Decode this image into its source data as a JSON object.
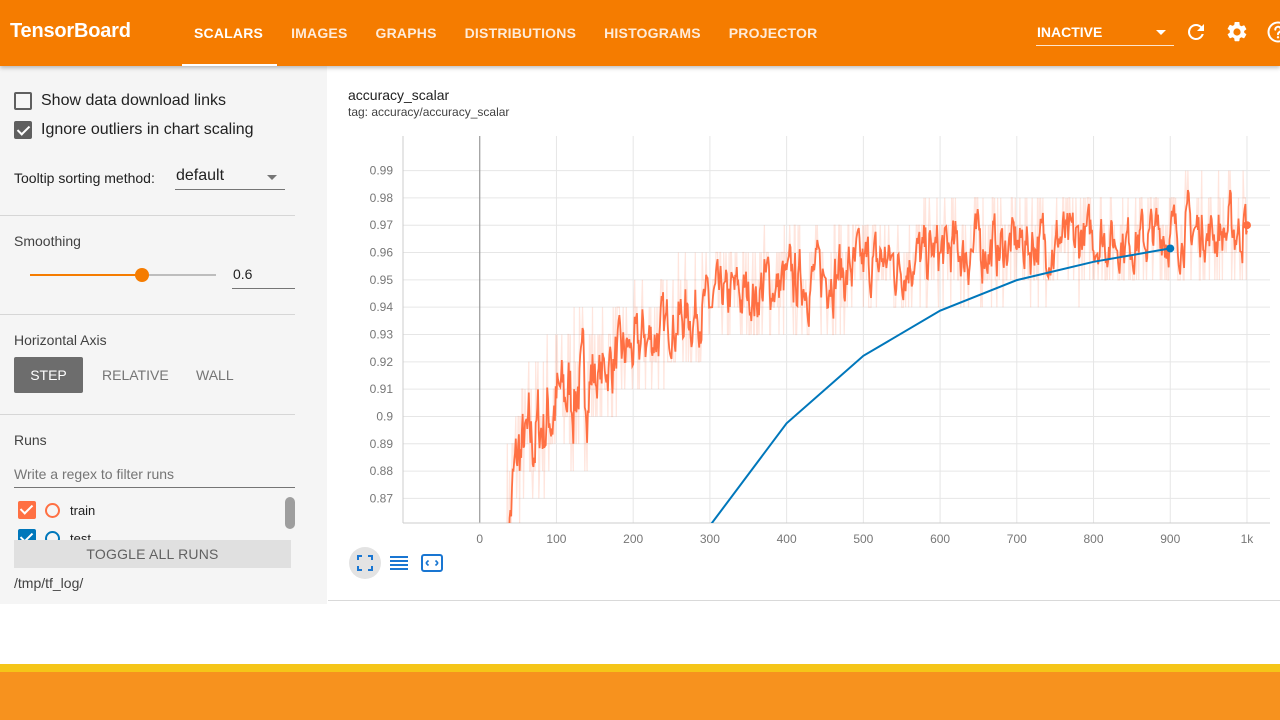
{
  "app": {
    "title": "TensorBoard"
  },
  "tabs": [
    {
      "label": "SCALARS",
      "active": true
    },
    {
      "label": "IMAGES",
      "active": false
    },
    {
      "label": "GRAPHS",
      "active": false
    },
    {
      "label": "DISTRIBUTIONS",
      "active": false
    },
    {
      "label": "HISTOGRAMS",
      "active": false
    },
    {
      "label": "PROJECTOR",
      "active": false
    }
  ],
  "header": {
    "status_select": "INACTIVE",
    "icons": [
      "refresh-icon",
      "gear-icon",
      "help-icon"
    ]
  },
  "sidebar": {
    "show_download_links": {
      "label": "Show data download links",
      "checked": false
    },
    "ignore_outliers": {
      "label": "Ignore outliers in chart scaling",
      "checked": true
    },
    "tooltip_sorting": {
      "label": "Tooltip sorting method:",
      "value": "default"
    },
    "smoothing": {
      "title": "Smoothing",
      "value": "0.6",
      "fraction": 0.6
    },
    "horizontal_axis": {
      "title": "Horizontal Axis",
      "options": [
        "STEP",
        "RELATIVE",
        "WALL"
      ],
      "selected": "STEP"
    },
    "runs": {
      "title": "Runs",
      "filter_placeholder": "Write a regex to filter runs",
      "items": [
        {
          "name": "train",
          "color": "#ff7043",
          "checked": true
        },
        {
          "name": "test",
          "color": "#0077bb",
          "checked": true
        }
      ],
      "toggle_all_label": "TOGGLE ALL RUNS",
      "logdir": "/tmp/tf_log/"
    }
  },
  "card": {
    "title": "accuracy_scalar",
    "tag": "tag: accuracy/accuracy_scalar"
  },
  "chart_data": {
    "type": "line",
    "title": "accuracy_scalar",
    "xlabel": "",
    "ylabel": "",
    "x_ticks": [
      "0",
      "100",
      "200",
      "300",
      "400",
      "500",
      "600",
      "700",
      "800",
      "900",
      "1k"
    ],
    "y_ticks": [
      "0.87",
      "0.88",
      "0.89",
      "0.9",
      "0.91",
      "0.92",
      "0.93",
      "0.94",
      "0.95",
      "0.96",
      "0.97",
      "0.98",
      "0.99"
    ],
    "xlim": [
      -100,
      1030
    ],
    "ylim": [
      0.861,
      0.999
    ],
    "grid": true,
    "series": [
      {
        "name": "train",
        "color": "#ff7043",
        "smoothed_trend": [
          [
            35,
            0.862
          ],
          [
            50,
            0.885
          ],
          [
            100,
            0.905
          ],
          [
            150,
            0.915
          ],
          [
            200,
            0.925
          ],
          [
            250,
            0.935
          ],
          [
            300,
            0.941
          ],
          [
            350,
            0.946
          ],
          [
            400,
            0.949
          ],
          [
            450,
            0.952
          ],
          [
            500,
            0.955
          ],
          [
            550,
            0.957
          ],
          [
            600,
            0.96
          ],
          [
            650,
            0.962
          ],
          [
            700,
            0.963
          ],
          [
            750,
            0.964
          ],
          [
            800,
            0.965
          ],
          [
            850,
            0.966
          ],
          [
            900,
            0.967
          ],
          [
            950,
            0.968
          ],
          [
            1000,
            0.97
          ]
        ],
        "end_point": [
          1000,
          0.97
        ]
      },
      {
        "name": "test",
        "color": "#0077bb",
        "points": [
          [
            300,
            0.86
          ],
          [
            400,
            0.8975
          ],
          [
            500,
            0.9222
          ],
          [
            600,
            0.9387
          ],
          [
            700,
            0.9499
          ],
          [
            800,
            0.9566
          ],
          [
            900,
            0.9615
          ]
        ]
      }
    ]
  }
}
